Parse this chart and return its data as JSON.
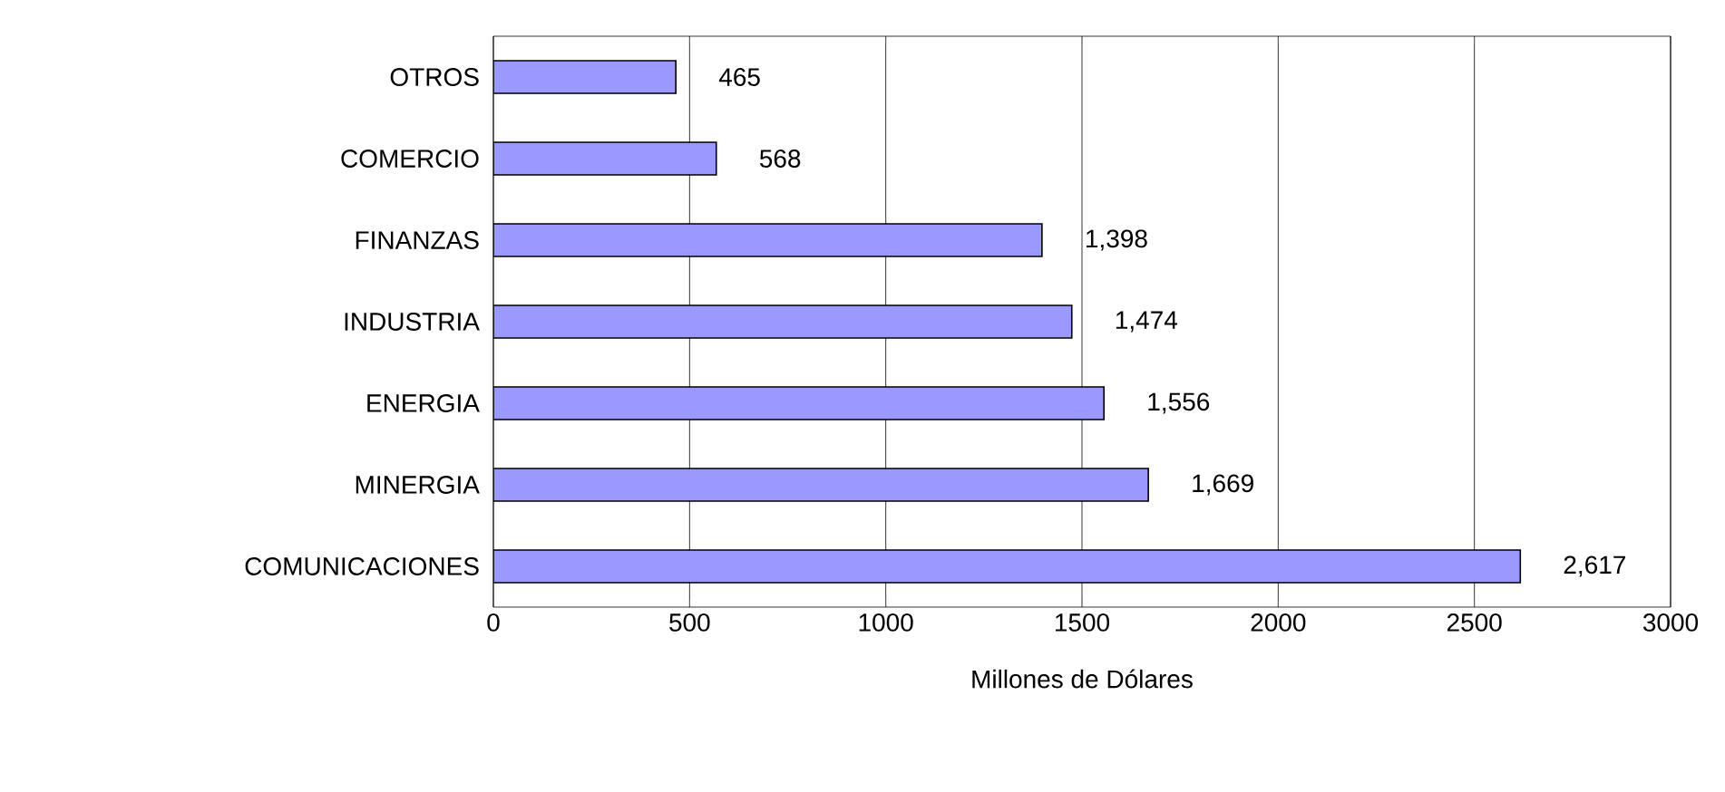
{
  "chart_data": {
    "type": "bar",
    "orientation": "horizontal",
    "xlabel": "Millones de Dólares",
    "categories": [
      "OTROS",
      "COMERCIO",
      "FINANZAS",
      "INDUSTRIA",
      "ENERGIA",
      "MINERGIA",
      "COMUNICACIONES"
    ],
    "values": [
      465,
      568,
      1398,
      1474,
      1556,
      1669,
      2617
    ],
    "value_labels": [
      "465",
      "568",
      "1,398",
      "1,474",
      "1,556",
      "1,669",
      "2,617"
    ],
    "color": "#9999ff",
    "xlim": [
      0,
      3000
    ],
    "xticks": [
      0,
      500,
      1000,
      1500,
      2000,
      2500,
      3000
    ],
    "grid": "x"
  }
}
